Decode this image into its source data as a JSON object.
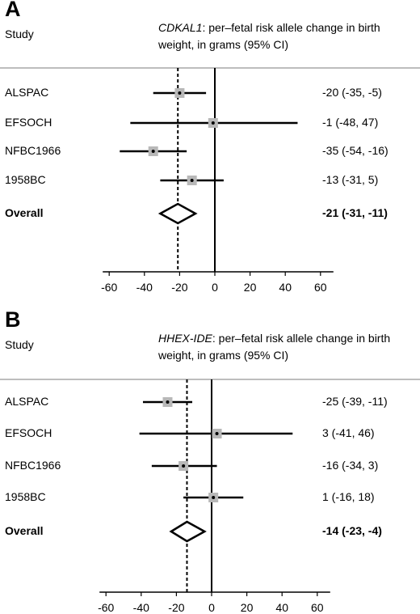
{
  "chart_data": [
    {
      "type": "forest",
      "panel_letter": "A",
      "study_header": "Study",
      "gene": "CDKAL1",
      "title_rest_line1": ": per–fetal risk allele change in birth",
      "title_line2": "weight, in grams (95% CI)",
      "x_ticks": [
        -60,
        -40,
        -20,
        0,
        20,
        40,
        60
      ],
      "xlim": [
        -60,
        60
      ],
      "null_line": 0,
      "studies": [
        {
          "name": "ALSPAC",
          "estimate": -20,
          "lower": -35,
          "upper": -5,
          "label": "-20 (-35, -5)"
        },
        {
          "name": "EFSOCH",
          "estimate": -1,
          "lower": -48,
          "upper": 47,
          "label": "-1 (-48, 47)"
        },
        {
          "name": "NFBC1966",
          "estimate": -35,
          "lower": -54,
          "upper": -16,
          "label": "-35 (-54, -16)"
        },
        {
          "name": "1958BC",
          "estimate": -13,
          "lower": -31,
          "upper": 5,
          "label": "-13 (-31, 5)"
        }
      ],
      "overall": {
        "name": "Overall",
        "estimate": -21,
        "lower": -31,
        "upper": -11,
        "label": "-21 (-31, -11)"
      }
    },
    {
      "type": "forest",
      "panel_letter": "B",
      "study_header": "Study",
      "gene": "HHEX-IDE",
      "title_rest_line1": ": per–fetal risk allele change in birth",
      "title_line2": "weight, in grams (95% CI)",
      "x_ticks": [
        -60,
        -40,
        -20,
        0,
        20,
        40,
        60
      ],
      "xlim": [
        -60,
        60
      ],
      "null_line": 0,
      "studies": [
        {
          "name": "ALSPAC",
          "estimate": -25,
          "lower": -39,
          "upper": -11,
          "label": "-25 (-39, -11)"
        },
        {
          "name": "EFSOCH",
          "estimate": 3,
          "lower": -41,
          "upper": 46,
          "label": "3 (-41, 46)"
        },
        {
          "name": "NFBC1966",
          "estimate": -16,
          "lower": -34,
          "upper": 3,
          "label": "-16 (-34, 3)"
        },
        {
          "name": "1958BC",
          "estimate": 1,
          "lower": -16,
          "upper": 18,
          "label": "1 (-16, 18)"
        }
      ],
      "overall": {
        "name": "Overall",
        "estimate": -14,
        "lower": -23,
        "upper": -4,
        "label": "-14 (-23, -4)"
      }
    }
  ]
}
